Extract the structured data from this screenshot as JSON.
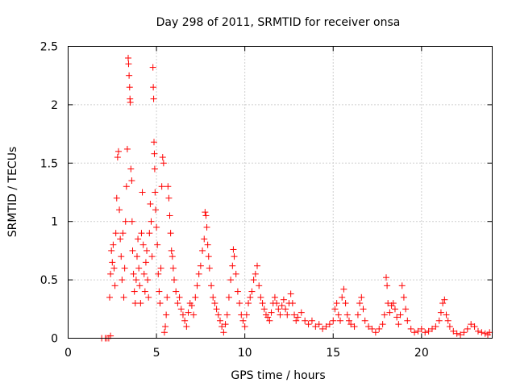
{
  "chart_data": {
    "type": "scatter",
    "title": "Day 298 of 2011, SRMTID for receiver onsa",
    "xlabel": "GPS time / hours",
    "ylabel": "SRMTID / TECUs",
    "xlim": [
      0,
      24
    ],
    "ylim": [
      0,
      2.5
    ],
    "xticks": [
      "0",
      "5",
      "10",
      "15",
      "20"
    ],
    "xtick_values": [
      0,
      5,
      10,
      15,
      20
    ],
    "yticks": [
      "0",
      "0.5",
      "1",
      "1.5",
      "2",
      "2.5"
    ],
    "ytick_values": [
      0,
      0.5,
      1,
      1.5,
      2,
      2.5
    ],
    "grid": true,
    "legend": "none",
    "marker": "plus",
    "series_color": "#ff0000",
    "points": [
      [
        1.9,
        0.0
      ],
      [
        2.1,
        0.0
      ],
      [
        2.2,
        0.0
      ],
      [
        2.3,
        0.0
      ],
      [
        2.4,
        0.02
      ],
      [
        2.35,
        0.35
      ],
      [
        2.4,
        0.55
      ],
      [
        2.45,
        0.75
      ],
      [
        2.5,
        0.65
      ],
      [
        2.55,
        0.8
      ],
      [
        2.6,
        0.6
      ],
      [
        2.65,
        0.45
      ],
      [
        2.7,
        0.9
      ],
      [
        2.75,
        1.2
      ],
      [
        2.8,
        1.55
      ],
      [
        2.85,
        1.6
      ],
      [
        2.9,
        1.1
      ],
      [
        2.95,
        0.85
      ],
      [
        3.0,
        0.7
      ],
      [
        3.05,
        0.5
      ],
      [
        3.1,
        0.9
      ],
      [
        3.15,
        0.35
      ],
      [
        3.2,
        0.6
      ],
      [
        3.25,
        1.0
      ],
      [
        3.3,
        1.3
      ],
      [
        3.35,
        1.62
      ],
      [
        3.4,
        2.4
      ],
      [
        3.42,
        2.35
      ],
      [
        3.45,
        2.25
      ],
      [
        3.48,
        2.15
      ],
      [
        3.5,
        2.05
      ],
      [
        3.52,
        2.02
      ],
      [
        3.55,
        1.45
      ],
      [
        3.6,
        1.35
      ],
      [
        3.62,
        1.0
      ],
      [
        3.65,
        0.75
      ],
      [
        3.7,
        0.55
      ],
      [
        3.75,
        0.4
      ],
      [
        3.8,
        0.3
      ],
      [
        3.85,
        0.5
      ],
      [
        3.9,
        0.7
      ],
      [
        3.95,
        0.85
      ],
      [
        4.0,
        0.6
      ],
      [
        4.05,
        0.45
      ],
      [
        4.1,
        0.3
      ],
      [
        4.15,
        0.9
      ],
      [
        4.2,
        1.25
      ],
      [
        4.25,
        0.8
      ],
      [
        4.3,
        0.55
      ],
      [
        4.35,
        0.4
      ],
      [
        4.4,
        0.65
      ],
      [
        4.45,
        0.75
      ],
      [
        4.5,
        0.5
      ],
      [
        4.55,
        0.35
      ],
      [
        4.6,
        0.9
      ],
      [
        4.65,
        1.15
      ],
      [
        4.7,
        1.0
      ],
      [
        4.75,
        0.7
      ],
      [
        4.8,
        2.32
      ],
      [
        4.82,
        2.15
      ],
      [
        4.84,
        2.05
      ],
      [
        4.86,
        1.68
      ],
      [
        4.88,
        1.58
      ],
      [
        4.9,
        1.45
      ],
      [
        4.92,
        1.25
      ],
      [
        4.95,
        1.1
      ],
      [
        5.0,
        0.95
      ],
      [
        5.05,
        0.8
      ],
      [
        5.1,
        0.55
      ],
      [
        5.15,
        0.4
      ],
      [
        5.2,
        0.3
      ],
      [
        5.25,
        0.6
      ],
      [
        5.3,
        1.3
      ],
      [
        5.35,
        1.55
      ],
      [
        5.4,
        1.5
      ],
      [
        5.45,
        0.05
      ],
      [
        5.5,
        0.1
      ],
      [
        5.55,
        0.2
      ],
      [
        5.6,
        0.35
      ],
      [
        5.65,
        1.3
      ],
      [
        5.7,
        1.2
      ],
      [
        5.75,
        1.05
      ],
      [
        5.8,
        0.9
      ],
      [
        5.85,
        0.75
      ],
      [
        5.9,
        0.7
      ],
      [
        5.95,
        0.6
      ],
      [
        6.0,
        0.5
      ],
      [
        6.1,
        0.4
      ],
      [
        6.2,
        0.3
      ],
      [
        6.3,
        0.35
      ],
      [
        6.4,
        0.25
      ],
      [
        6.5,
        0.2
      ],
      [
        6.6,
        0.15
      ],
      [
        6.7,
        0.1
      ],
      [
        6.8,
        0.22
      ],
      [
        6.9,
        0.3
      ],
      [
        7.0,
        0.28
      ],
      [
        7.1,
        0.2
      ],
      [
        7.2,
        0.35
      ],
      [
        7.3,
        0.45
      ],
      [
        7.4,
        0.55
      ],
      [
        7.5,
        0.62
      ],
      [
        7.6,
        0.75
      ],
      [
        7.7,
        0.85
      ],
      [
        7.75,
        1.08
      ],
      [
        7.8,
        1.05
      ],
      [
        7.85,
        0.95
      ],
      [
        7.9,
        0.8
      ],
      [
        7.95,
        0.7
      ],
      [
        8.0,
        0.6
      ],
      [
        8.1,
        0.45
      ],
      [
        8.2,
        0.35
      ],
      [
        8.3,
        0.3
      ],
      [
        8.4,
        0.25
      ],
      [
        8.5,
        0.2
      ],
      [
        8.6,
        0.15
      ],
      [
        8.7,
        0.1
      ],
      [
        8.8,
        0.05
      ],
      [
        8.9,
        0.12
      ],
      [
        9.0,
        0.2
      ],
      [
        9.1,
        0.35
      ],
      [
        9.2,
        0.5
      ],
      [
        9.3,
        0.62
      ],
      [
        9.35,
        0.76
      ],
      [
        9.4,
        0.7
      ],
      [
        9.5,
        0.55
      ],
      [
        9.6,
        0.4
      ],
      [
        9.7,
        0.3
      ],
      [
        9.8,
        0.2
      ],
      [
        9.9,
        0.15
      ],
      [
        10.0,
        0.1
      ],
      [
        10.1,
        0.2
      ],
      [
        10.2,
        0.3
      ],
      [
        10.3,
        0.35
      ],
      [
        10.4,
        0.4
      ],
      [
        10.5,
        0.5
      ],
      [
        10.6,
        0.55
      ],
      [
        10.7,
        0.62
      ],
      [
        10.8,
        0.45
      ],
      [
        10.9,
        0.35
      ],
      [
        11.0,
        0.3
      ],
      [
        11.1,
        0.25
      ],
      [
        11.2,
        0.2
      ],
      [
        11.3,
        0.18
      ],
      [
        11.4,
        0.15
      ],
      [
        11.5,
        0.22
      ],
      [
        11.6,
        0.3
      ],
      [
        11.7,
        0.35
      ],
      [
        11.8,
        0.3
      ],
      [
        11.9,
        0.25
      ],
      [
        12.0,
        0.2
      ],
      [
        12.1,
        0.28
      ],
      [
        12.2,
        0.33
      ],
      [
        12.3,
        0.25
      ],
      [
        12.4,
        0.2
      ],
      [
        12.5,
        0.3
      ],
      [
        12.6,
        0.38
      ],
      [
        12.7,
        0.3
      ],
      [
        12.8,
        0.2
      ],
      [
        12.9,
        0.15
      ],
      [
        13.0,
        0.18
      ],
      [
        13.2,
        0.22
      ],
      [
        13.4,
        0.15
      ],
      [
        13.6,
        0.12
      ],
      [
        13.8,
        0.15
      ],
      [
        14.0,
        0.1
      ],
      [
        14.2,
        0.12
      ],
      [
        14.4,
        0.08
      ],
      [
        14.6,
        0.1
      ],
      [
        14.8,
        0.12
      ],
      [
        15.0,
        0.15
      ],
      [
        15.1,
        0.25
      ],
      [
        15.2,
        0.3
      ],
      [
        15.3,
        0.2
      ],
      [
        15.4,
        0.15
      ],
      [
        15.5,
        0.35
      ],
      [
        15.6,
        0.42
      ],
      [
        15.7,
        0.3
      ],
      [
        15.8,
        0.2
      ],
      [
        15.9,
        0.15
      ],
      [
        16.0,
        0.12
      ],
      [
        16.2,
        0.1
      ],
      [
        16.4,
        0.2
      ],
      [
        16.5,
        0.3
      ],
      [
        16.6,
        0.35
      ],
      [
        16.7,
        0.25
      ],
      [
        16.8,
        0.15
      ],
      [
        17.0,
        0.1
      ],
      [
        17.2,
        0.08
      ],
      [
        17.4,
        0.05
      ],
      [
        17.6,
        0.08
      ],
      [
        17.8,
        0.12
      ],
      [
        17.9,
        0.2
      ],
      [
        18.0,
        0.52
      ],
      [
        18.05,
        0.45
      ],
      [
        18.1,
        0.3
      ],
      [
        18.2,
        0.22
      ],
      [
        18.3,
        0.28
      ],
      [
        18.4,
        0.3
      ],
      [
        18.5,
        0.25
      ],
      [
        18.6,
        0.18
      ],
      [
        18.7,
        0.12
      ],
      [
        18.8,
        0.2
      ],
      [
        18.9,
        0.45
      ],
      [
        19.0,
        0.35
      ],
      [
        19.1,
        0.25
      ],
      [
        19.2,
        0.15
      ],
      [
        19.4,
        0.08
      ],
      [
        19.6,
        0.05
      ],
      [
        19.8,
        0.06
      ],
      [
        20.0,
        0.08
      ],
      [
        20.2,
        0.05
      ],
      [
        20.4,
        0.06
      ],
      [
        20.6,
        0.08
      ],
      [
        20.8,
        0.1
      ],
      [
        21.0,
        0.15
      ],
      [
        21.1,
        0.22
      ],
      [
        21.2,
        0.3
      ],
      [
        21.3,
        0.33
      ],
      [
        21.4,
        0.2
      ],
      [
        21.5,
        0.15
      ],
      [
        21.6,
        0.1
      ],
      [
        21.8,
        0.06
      ],
      [
        22.0,
        0.04
      ],
      [
        22.2,
        0.03
      ],
      [
        22.4,
        0.05
      ],
      [
        22.6,
        0.08
      ],
      [
        22.8,
        0.12
      ],
      [
        23.0,
        0.1
      ],
      [
        23.2,
        0.06
      ],
      [
        23.4,
        0.05
      ],
      [
        23.6,
        0.04
      ],
      [
        23.75,
        0.03
      ],
      [
        23.85,
        0.05
      ]
    ]
  }
}
